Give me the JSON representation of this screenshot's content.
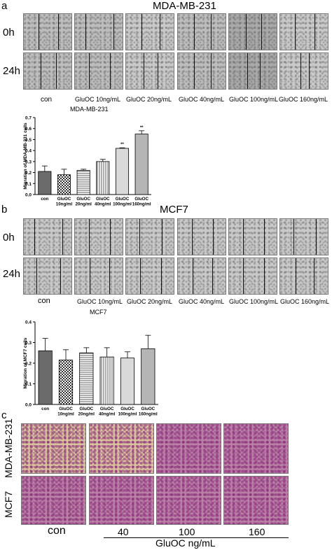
{
  "panel_a": {
    "letter": "a",
    "title": "MDA-MB-231",
    "rows": [
      "0h",
      "24h"
    ],
    "col_labels": [
      "con",
      "GluOC 10ng/mL",
      "GluOC 20ng/mL",
      "GluOC 40ng/mL",
      "GluOC 100ng/mL",
      "GluOC 160ng/mL"
    ],
    "sub_label": "MDA-MB-231"
  },
  "panel_b": {
    "letter": "b",
    "title": "MCF7",
    "rows": [
      "0h",
      "24h"
    ],
    "col_labels": [
      "con",
      "GluOC 10ng/mL",
      "GluOC 20ng/mL",
      "GluOC 40ng/mL",
      "GluOC 100ng/mL",
      "GluOC 160ng/mL"
    ],
    "sub_label": "MCF7"
  },
  "panel_c": {
    "letter": "c",
    "rows": [
      "MDA-MB-231",
      "MCF7"
    ],
    "col_labels": [
      "con",
      "40",
      "100",
      "160"
    ],
    "axis_label": "GluOC ng/mL"
  },
  "chart_data": [
    {
      "type": "bar",
      "categories": [
        "con",
        "GluOC 10ng/ml",
        "GluOC 20ng/ml",
        "GluOC 40ng/ml",
        "GluOC 100ng/ml",
        "GluOC 160ng/ml"
      ],
      "values": [
        0.21,
        0.18,
        0.22,
        0.3,
        0.42,
        0.55
      ],
      "errors": [
        0.05,
        0.05,
        0.01,
        0.02,
        0.005,
        0.03
      ],
      "annotations": [
        "",
        "",
        "",
        "",
        "**",
        "**"
      ],
      "ylabel": "Migration of MDA-MB-231 cells",
      "yticks": [
        "0.0",
        "0.1",
        "0.2",
        "0.3",
        "0.4",
        "0.5",
        "0.6",
        "0.7"
      ],
      "ylim": [
        0,
        0.7
      ],
      "fills": [
        "#6b6b6b",
        "checker",
        "hstripes",
        "vstripes",
        "#d9d9d9",
        "#b5b5b5"
      ]
    },
    {
      "type": "bar",
      "categories": [
        "con",
        "GluOC 10ng/ml",
        "GluOC 20ng/ml",
        "GluOC 40ng/ml",
        "GluOC 100ng/ml",
        "GluOC 160ng/ml"
      ],
      "values": [
        0.26,
        0.215,
        0.25,
        0.23,
        0.225,
        0.27
      ],
      "errors": [
        0.06,
        0.05,
        0.025,
        0.045,
        0.03,
        0.065
      ],
      "annotations": [
        "",
        "",
        "",
        "",
        "",
        ""
      ],
      "ylabel": "Migration of MCF7 cells",
      "yticks": [
        "0.0",
        "0.1",
        "0.2",
        "0.3",
        "0.4"
      ],
      "ylim": [
        0,
        0.4
      ],
      "fills": [
        "#6b6b6b",
        "checker",
        "hstripes",
        "vstripes",
        "#d9d9d9",
        "#b5b5b5"
      ]
    }
  ]
}
